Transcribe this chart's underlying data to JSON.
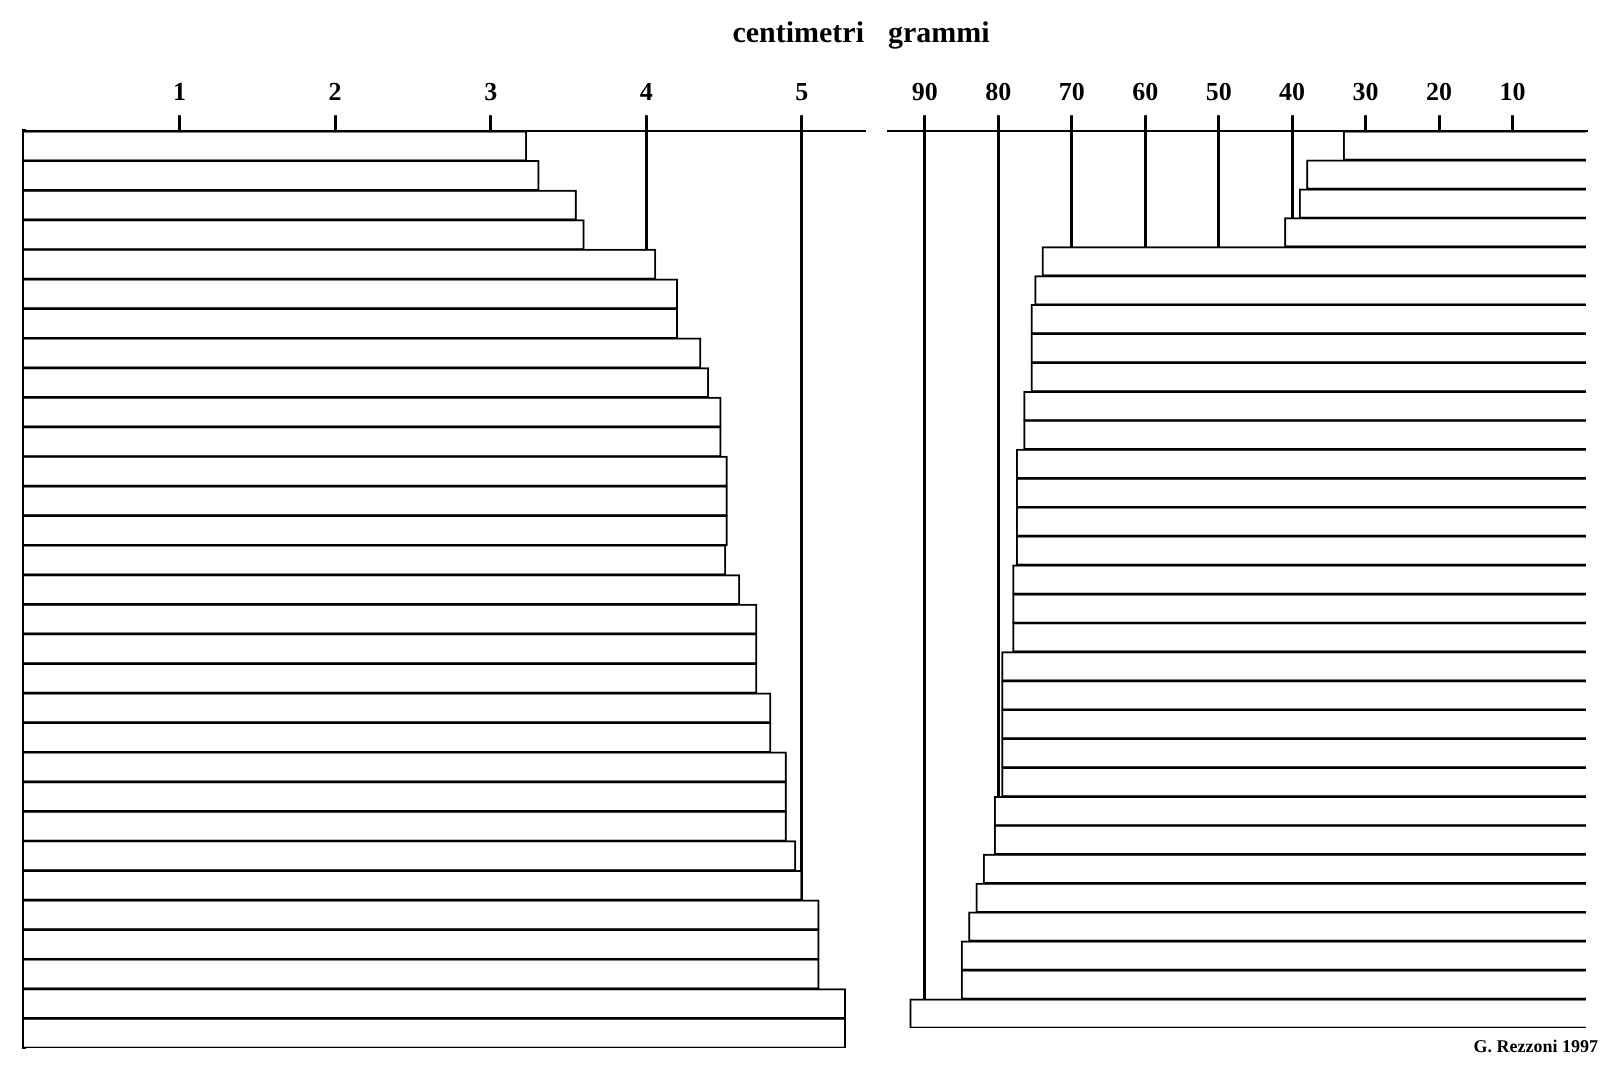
{
  "chart_data": [
    {
      "type": "bar",
      "orientation": "horizontal",
      "title": "centimetri",
      "categories": [
        null,
        null,
        null,
        null,
        null,
        null,
        null,
        null,
        null,
        null,
        null,
        null,
        null,
        null,
        null,
        null,
        null,
        null,
        null,
        null,
        null,
        null,
        null,
        null,
        null,
        null,
        null,
        null,
        null,
        null,
        null
      ],
      "values": [
        3.23,
        3.31,
        3.55,
        3.6,
        4.06,
        4.2,
        4.2,
        4.35,
        4.4,
        4.48,
        4.48,
        4.52,
        4.52,
        4.52,
        4.51,
        4.6,
        4.71,
        4.71,
        4.71,
        4.8,
        4.8,
        4.9,
        4.9,
        4.9,
        4.96,
        5.0,
        5.11,
        5.11,
        5.11,
        5.28,
        5.28
      ],
      "color": "#ffffff",
      "xlim": [
        0,
        5.4
      ],
      "xticks": [
        1,
        2,
        3,
        4,
        5
      ],
      "grid": "x",
      "tick_labels": "x"
    },
    {
      "type": "bar",
      "orientation": "horizontal",
      "title": "grammi",
      "categories": [
        null,
        null,
        null,
        null,
        null,
        null,
        null,
        null,
        null,
        null,
        null,
        null,
        null,
        null,
        null,
        null,
        null,
        null,
        null,
        null,
        null,
        null,
        null,
        null,
        null,
        null,
        null,
        null,
        null,
        null,
        null
      ],
      "values": [
        33,
        38,
        39,
        41,
        74,
        75,
        75.5,
        75.5,
        75.5,
        76.5,
        76.5,
        77.5,
        77.5,
        77.5,
        77.5,
        78,
        78,
        78,
        79.5,
        79.5,
        79.5,
        79.5,
        79.5,
        80.5,
        80.5,
        82,
        83,
        84,
        85,
        85,
        92
      ],
      "color": "#ffffff",
      "xlim": [
        95,
        0
      ],
      "xticks": [
        90,
        80,
        70,
        60,
        50,
        40,
        30,
        20,
        10
      ],
      "grid": "x",
      "tick_labels": "x",
      "annotations": [
        "G. Rezzoni 1997"
      ]
    }
  ]
}
